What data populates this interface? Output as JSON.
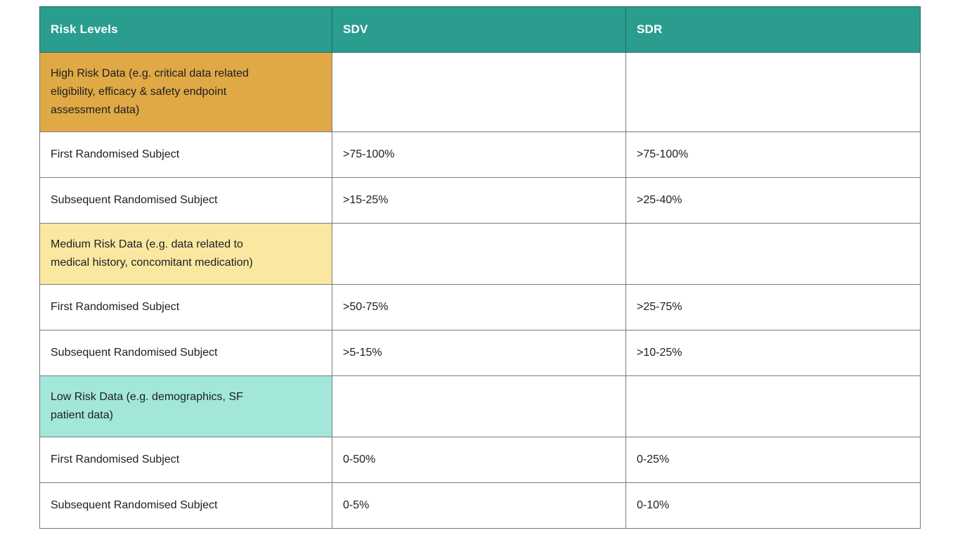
{
  "colors": {
    "page_bg": "#FFFFFF",
    "header_bg": "#2A9D8F",
    "header_text": "#FFFFFF",
    "header_border": "#26655E",
    "body_border": "#7A7A7A",
    "body_text": "#1B1E22",
    "high_risk_bg": "#E0A945",
    "medium_risk_bg": "#FBE8A0",
    "low_risk_bg": "#A3E7DB"
  },
  "table": {
    "headers": [
      "Risk Levels",
      "SDV",
      "SDR"
    ],
    "rows": [
      {
        "kind": "category",
        "bg": "#E0A945",
        "label": "High Risk Data (e.g. critical data related eligibility, efficacy & safety endpoint assessment data)",
        "sdv": "",
        "sdr": ""
      },
      {
        "kind": "data",
        "label": "First Randomised Subject",
        "sdv": ">75-100%",
        "sdr": ">75-100%"
      },
      {
        "kind": "data",
        "label": "Subsequent Randomised Subject",
        "sdv": ">15-25%",
        "sdr": ">25-40%"
      },
      {
        "kind": "category",
        "bg": "#FBE8A0",
        "label": "Medium Risk Data (e.g. data related to medical history, concomitant medication)",
        "sdv": "",
        "sdr": ""
      },
      {
        "kind": "data",
        "label": "First Randomised Subject",
        "sdv": ">50-75%",
        "sdr": ">25-75%"
      },
      {
        "kind": "data",
        "label": "Subsequent Randomised Subject",
        "sdv": ">5-15%",
        "sdr": ">10-25%"
      },
      {
        "kind": "category",
        "bg": "#A3E7DB",
        "label": "Low Risk Data (e.g. demographics, SF patient data)",
        "sdv": "",
        "sdr": ""
      },
      {
        "kind": "data",
        "label": "First Randomised Subject",
        "sdv": "0-50%",
        "sdr": "0-25%"
      },
      {
        "kind": "data",
        "label": "Subsequent Randomised Subject",
        "sdv": "0-5%",
        "sdr": "0-10%"
      }
    ]
  },
  "chart_data": {
    "type": "table",
    "title": "",
    "columns": [
      "Risk Levels",
      "SDV",
      "SDR"
    ],
    "rows": [
      [
        "High Risk Data (e.g. critical data related eligibility, efficacy & safety endpoint assessment data)",
        "",
        ""
      ],
      [
        "First Randomised Subject",
        ">75-100%",
        ">75-100%"
      ],
      [
        "Subsequent Randomised Subject",
        ">15-25%",
        ">25-40%"
      ],
      [
        "Medium Risk Data (e.g. data related to medical history, concomitant medication)",
        "",
        ""
      ],
      [
        "First Randomised Subject",
        ">50-75%",
        ">25-75%"
      ],
      [
        "Subsequent Randomised Subject",
        ">5-15%",
        ">10-25%"
      ],
      [
        "Low Risk Data (e.g. demographics, SF patient data)",
        "",
        ""
      ],
      [
        "First Randomised Subject",
        "0-50%",
        "0-25%"
      ],
      [
        "Subsequent Randomised Subject",
        "0-5%",
        "0-10%"
      ]
    ],
    "row_group_colors": {
      "high_risk": "#E0A945",
      "medium_risk": "#FBE8A0",
      "low_risk": "#A3E7DB"
    },
    "legend_position": "none",
    "grid": true
  }
}
